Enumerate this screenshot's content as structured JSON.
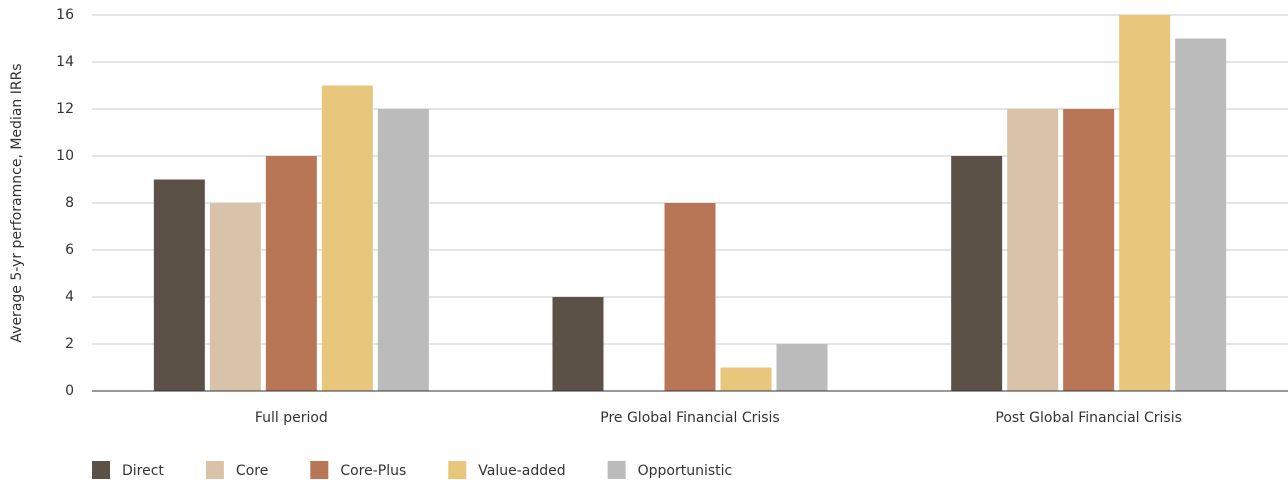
{
  "chart_data": {
    "type": "bar",
    "y_label": "Average 5-yr perforamnce, Median IRRs",
    "categories": [
      "Full period",
      "Pre Global Financial Crisis",
      "Post Global Financial Crisis"
    ],
    "series": [
      {
        "name": "Direct",
        "color": "#5b5147",
        "values": [
          9,
          4,
          10
        ]
      },
      {
        "name": "Core",
        "color": "#d8c3a8",
        "values": [
          8,
          null,
          12
        ]
      },
      {
        "name": "Core-Plus",
        "color": "#b87656",
        "values": [
          10,
          8,
          12
        ]
      },
      {
        "name": "Value-added",
        "color": "#e8c67b",
        "values": [
          13,
          1,
          16
        ]
      },
      {
        "name": "Opportunistic",
        "color": "#bbbbbb",
        "values": [
          12,
          2,
          15
        ]
      }
    ],
    "ylim": [
      0,
      16
    ],
    "yticks": [
      0,
      2,
      4,
      6,
      8,
      10,
      12,
      14,
      16
    ],
    "grid": true,
    "legend": "bottom"
  }
}
